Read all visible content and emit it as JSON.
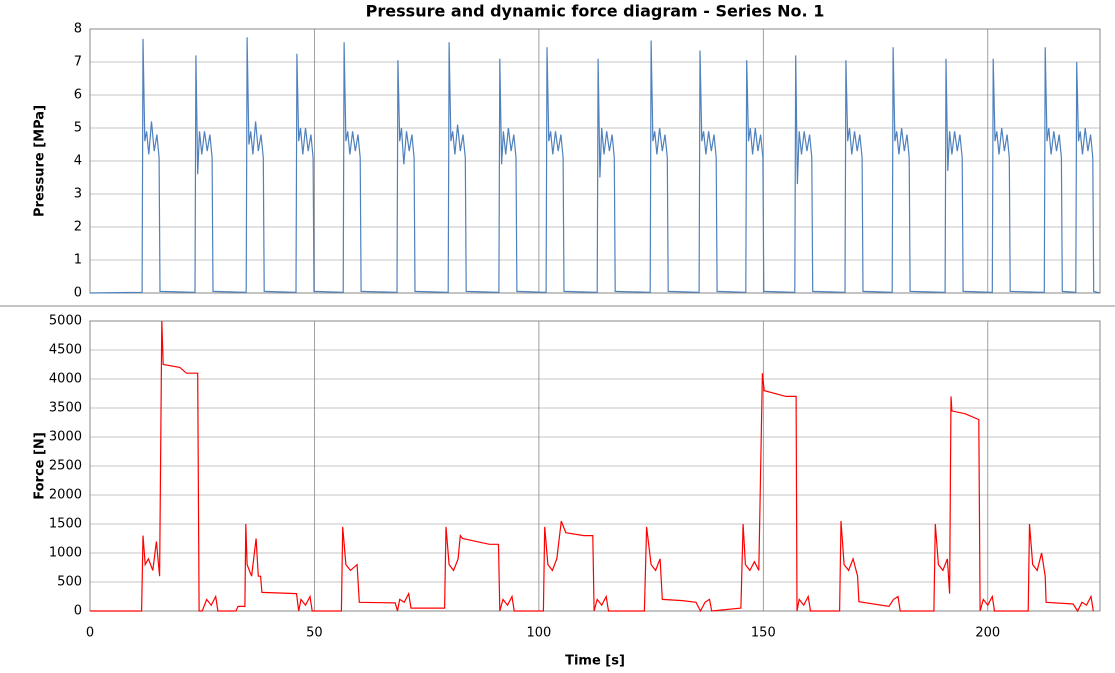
{
  "chart_data": [
    {
      "type": "line",
      "title": "Pressure and dynamic force diagram - Series No. 1",
      "ylabel": "Pressure [MPa]",
      "xlim": [
        0,
        225
      ],
      "xticks": [
        0,
        50,
        100,
        150,
        200
      ],
      "ylim": [
        0,
        8
      ],
      "yticks": [
        0,
        1,
        2,
        3,
        4,
        5,
        6,
        7,
        8
      ],
      "grid": true,
      "series": [
        {
          "name": "Pressure",
          "color": "#4f81bd",
          "x": [
            0,
            11.6,
            11.8,
            12.2,
            12.6,
            13.1,
            13.7,
            14.3,
            14.9,
            15.4,
            15.6,
            23.4,
            23.6,
            24.0,
            24.4,
            24.9,
            25.5,
            26.1,
            26.7,
            27.2,
            27.4,
            34.8,
            35.0,
            35.4,
            35.8,
            36.3,
            36.9,
            37.5,
            38.1,
            38.6,
            38.8,
            45.9,
            46.1,
            46.5,
            46.9,
            47.4,
            48.0,
            48.6,
            49.2,
            49.7,
            49.9,
            56.4,
            56.6,
            57.0,
            57.4,
            57.9,
            58.5,
            59.1,
            59.7,
            60.2,
            60.4,
            68.4,
            68.6,
            69.0,
            69.4,
            69.9,
            70.5,
            71.1,
            71.7,
            72.2,
            72.4,
            79.8,
            80.0,
            80.4,
            80.8,
            81.3,
            81.9,
            82.5,
            83.1,
            83.6,
            83.8,
            91.1,
            91.3,
            91.7,
            92.1,
            92.6,
            93.2,
            93.8,
            94.4,
            94.9,
            95.1,
            101.6,
            101.8,
            102.2,
            102.6,
            103.1,
            103.7,
            104.3,
            104.9,
            105.4,
            105.6,
            113.0,
            113.2,
            113.6,
            114.0,
            114.5,
            115.1,
            115.7,
            116.3,
            116.8,
            117.0,
            124.8,
            125.0,
            125.4,
            125.8,
            126.3,
            126.9,
            127.5,
            128.1,
            128.6,
            128.8,
            135.7,
            135.9,
            136.3,
            136.7,
            137.2,
            137.8,
            138.4,
            139.0,
            139.5,
            139.7,
            146.1,
            146.3,
            146.7,
            147.1,
            147.6,
            148.2,
            148.8,
            149.4,
            149.9,
            150.1,
            157.0,
            157.2,
            157.6,
            158.0,
            158.5,
            159.1,
            159.7,
            160.3,
            160.8,
            161.0,
            168.2,
            168.4,
            168.8,
            169.2,
            169.7,
            170.3,
            170.9,
            171.5,
            172.0,
            172.2,
            178.7,
            178.9,
            179.3,
            179.7,
            180.2,
            180.8,
            181.4,
            182.0,
            182.5,
            182.7,
            190.5,
            190.7,
            191.1,
            191.5,
            192.0,
            192.6,
            193.2,
            193.8,
            194.3,
            194.5,
            201.0,
            201.2,
            201.6,
            202.0,
            202.5,
            203.1,
            203.7,
            204.3,
            204.8,
            205.0,
            212.6,
            212.8,
            213.2,
            213.6,
            214.1,
            214.7,
            215.3,
            215.9,
            216.4,
            216.6,
            219.6,
            219.8,
            220.2,
            220.6,
            221.1,
            221.7,
            222.3,
            222.9,
            223.4,
            223.6,
            225
          ],
          "values": [
            0,
            0.02,
            7.7,
            4.6,
            4.9,
            4.2,
            5.2,
            4.3,
            4.8,
            4.1,
            0.05,
            0.02,
            7.2,
            3.6,
            4.9,
            4.2,
            4.9,
            4.3,
            4.8,
            4.1,
            0.05,
            0.02,
            7.75,
            4.5,
            4.9,
            4.2,
            5.2,
            4.3,
            4.8,
            4.1,
            0.05,
            0.02,
            7.25,
            4.6,
            5.0,
            4.2,
            5.0,
            4.3,
            4.8,
            4.1,
            0.05,
            0.02,
            7.6,
            4.6,
            4.9,
            4.2,
            4.9,
            4.3,
            4.8,
            4.1,
            0.05,
            0.02,
            7.05,
            4.6,
            5.0,
            3.9,
            4.9,
            4.3,
            4.8,
            4.1,
            0.05,
            0.02,
            7.6,
            4.6,
            4.9,
            4.2,
            5.1,
            4.3,
            4.8,
            4.1,
            0.05,
            0.02,
            7.1,
            3.9,
            4.9,
            4.2,
            5.0,
            4.3,
            4.8,
            4.1,
            0.05,
            0.02,
            7.45,
            4.6,
            4.9,
            4.2,
            4.9,
            4.3,
            4.8,
            4.1,
            0.05,
            0.02,
            7.1,
            3.5,
            5.0,
            4.2,
            4.9,
            4.3,
            4.8,
            4.1,
            0.05,
            0.02,
            7.65,
            4.6,
            4.9,
            4.2,
            5.0,
            4.3,
            4.8,
            4.1,
            0.05,
            0.02,
            7.35,
            4.6,
            4.9,
            4.2,
            4.9,
            4.3,
            4.8,
            4.1,
            0.05,
            0.02,
            7.05,
            4.6,
            5.0,
            4.2,
            5.0,
            4.3,
            4.8,
            4.1,
            0.05,
            0.02,
            7.2,
            3.3,
            4.9,
            4.2,
            4.9,
            4.3,
            4.8,
            4.1,
            0.05,
            0.02,
            7.05,
            4.6,
            5.0,
            4.2,
            4.9,
            4.3,
            4.8,
            4.1,
            0.05,
            0.02,
            7.45,
            4.6,
            4.9,
            4.2,
            5.0,
            4.3,
            4.8,
            4.1,
            0.05,
            0.02,
            7.1,
            3.7,
            4.9,
            4.2,
            4.9,
            4.3,
            4.8,
            4.1,
            0.05,
            0.02,
            7.1,
            4.6,
            4.9,
            4.2,
            5.0,
            4.3,
            4.8,
            4.1,
            0.05,
            0.02,
            7.45,
            4.6,
            5.0,
            4.2,
            4.9,
            4.3,
            4.8,
            4.1,
            0.05,
            0.02,
            7.0,
            4.6,
            4.9,
            4.2,
            5.0,
            4.3,
            4.8,
            4.1,
            0.05,
            0
          ]
        }
      ]
    },
    {
      "type": "line",
      "ylabel": "Force [N]",
      "xlabel": "Time [s]",
      "xlim": [
        0,
        225
      ],
      "xticks": [
        0,
        50,
        100,
        150,
        200
      ],
      "ylim": [
        0,
        5000
      ],
      "yticks": [
        0,
        500,
        1000,
        1500,
        2000,
        2500,
        3000,
        3500,
        4000,
        4500,
        5000
      ],
      "grid": true,
      "series": [
        {
          "name": "Force",
          "color": "#ff0000",
          "x": [
            0,
            11.5,
            11.8,
            12.3,
            13,
            14,
            14.8,
            15.5,
            16,
            16.3,
            20,
            21.5,
            24,
            24.3,
            25,
            26,
            27,
            28,
            28.5,
            32.5,
            33,
            34.5,
            34.7,
            35,
            36,
            37,
            37.5,
            38,
            38.3,
            46,
            46.5,
            47,
            48,
            49,
            49.5,
            56,
            56.3,
            57,
            58,
            59.5,
            60,
            68,
            68.5,
            69,
            70,
            71,
            71.5,
            79,
            79.3,
            80,
            81,
            82,
            82.5,
            83,
            86,
            89,
            91,
            91.3,
            92,
            93,
            94,
            94.5,
            101,
            101.3,
            102,
            103,
            104,
            105,
            106,
            110,
            112,
            112.3,
            113,
            114,
            115,
            115.5,
            123.5,
            124,
            125,
            126,
            127,
            127.5,
            132,
            135,
            136,
            137,
            138,
            138.5,
            145,
            145.5,
            146,
            147,
            148,
            149,
            149.8,
            150.2,
            155,
            157.3,
            157.5,
            158,
            159,
            160,
            160.5,
            167,
            167.3,
            168,
            169,
            170,
            171,
            171.3,
            178,
            179,
            180,
            180.5,
            188,
            188.3,
            189,
            190,
            191,
            191.5,
            191.8,
            192,
            195,
            198,
            198.3,
            199,
            200,
            201,
            201.5,
            209,
            209.3,
            210,
            211,
            212,
            212.8,
            213,
            219,
            220,
            221,
            222,
            223,
            223.5
          ],
          "values": [
            0,
            0,
            1300,
            800,
            900,
            700,
            1200,
            600,
            5000,
            4250,
            4200,
            4100,
            4100,
            0,
            0,
            200,
            100,
            250,
            0,
            0,
            80,
            80,
            1500,
            800,
            600,
            1250,
            600,
            600,
            320,
            300,
            0,
            200,
            100,
            250,
            0,
            0,
            1450,
            800,
            700,
            800,
            150,
            140,
            0,
            200,
            150,
            300,
            50,
            50,
            1450,
            800,
            700,
            900,
            1300,
            1250,
            1200,
            1150,
            1150,
            0,
            200,
            100,
            250,
            0,
            0,
            1450,
            800,
            700,
            900,
            1550,
            1350,
            1300,
            1300,
            0,
            200,
            100,
            250,
            0,
            0,
            1450,
            800,
            700,
            900,
            200,
            180,
            150,
            0,
            150,
            200,
            0,
            50,
            1500,
            800,
            700,
            850,
            700,
            4100,
            3800,
            3700,
            3700,
            0,
            200,
            100,
            250,
            0,
            0,
            1550,
            800,
            700,
            900,
            600,
            160,
            80,
            200,
            250,
            0,
            0,
            1500,
            800,
            700,
            900,
            300,
            3700,
            3450,
            3400,
            3300,
            0,
            200,
            100,
            250,
            0,
            0,
            1500,
            800,
            700,
            1000,
            600,
            150,
            120,
            0,
            150,
            100,
            250,
            0
          ]
        }
      ]
    }
  ]
}
